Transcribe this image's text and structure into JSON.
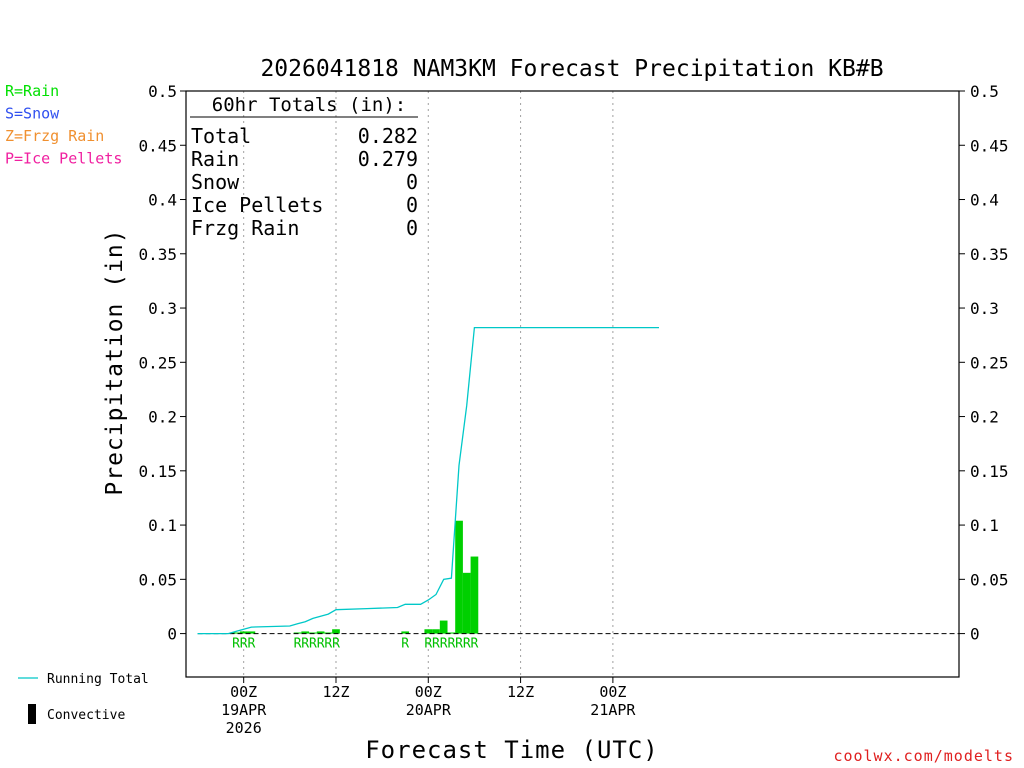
{
  "chart_data": {
    "type": "bar",
    "title": "2026041818 NAM3KM Forecast Precipitation KB#B",
    "ylabel": "Precipitation (in)",
    "xlabel": "Forecast Time (UTC)",
    "x_unit": "hours after 2026041818",
    "ylim": [
      -0.04,
      0.5
    ],
    "yticks": [
      0,
      0.05,
      0.1,
      0.15,
      0.2,
      0.25,
      0.3,
      0.35,
      0.4,
      0.45,
      0.5
    ],
    "ytick_labels": [
      "0",
      "0.05",
      "0.1",
      "0.15",
      "0.2",
      "0.25",
      "0.3",
      "0.35",
      "0.4",
      "0.45",
      "0.5"
    ],
    "xlim": [
      -1.5,
      99
    ],
    "xticks": [
      {
        "x": 6,
        "lines": [
          "00Z",
          "19APR",
          "2026"
        ]
      },
      {
        "x": 18,
        "lines": [
          "12Z"
        ]
      },
      {
        "x": 30,
        "lines": [
          "00Z",
          "20APR"
        ]
      },
      {
        "x": 42,
        "lines": [
          "12Z"
        ]
      },
      {
        "x": 54,
        "lines": [
          "00Z",
          "21APR"
        ]
      }
    ],
    "grid": "vertical-dotted",
    "bars_series": {
      "name": "Rain",
      "color": "#00d000",
      "points": [
        {
          "x": 5,
          "y": 0.001
        },
        {
          "x": 6,
          "y": 0.002
        },
        {
          "x": 7,
          "y": 0.002
        },
        {
          "x": 13,
          "y": 0.001
        },
        {
          "x": 14,
          "y": 0.002
        },
        {
          "x": 15,
          "y": 0.001
        },
        {
          "x": 16,
          "y": 0.002
        },
        {
          "x": 17,
          "y": 0.001
        },
        {
          "x": 18,
          "y": 0.004
        },
        {
          "x": 27,
          "y": 0.002
        },
        {
          "x": 30,
          "y": 0.004
        },
        {
          "x": 31,
          "y": 0.004
        },
        {
          "x": 32,
          "y": 0.012
        },
        {
          "x": 33,
          "y": 0.001
        },
        {
          "x": 34,
          "y": 0.104
        },
        {
          "x": 35,
          "y": 0.056
        },
        {
          "x": 36,
          "y": 0.071
        }
      ]
    },
    "line_series": {
      "name": "Running Total",
      "color": "#00c8c8",
      "points": [
        {
          "x": 0,
          "y": 0
        },
        {
          "x": 4,
          "y": 0
        },
        {
          "x": 5,
          "y": 0.002
        },
        {
          "x": 6,
          "y": 0.004
        },
        {
          "x": 7,
          "y": 0.006
        },
        {
          "x": 12,
          "y": 0.007
        },
        {
          "x": 13,
          "y": 0.009
        },
        {
          "x": 14,
          "y": 0.011
        },
        {
          "x": 15,
          "y": 0.014
        },
        {
          "x": 16,
          "y": 0.016
        },
        {
          "x": 17,
          "y": 0.018
        },
        {
          "x": 18,
          "y": 0.022
        },
        {
          "x": 22,
          "y": 0.023
        },
        {
          "x": 26,
          "y": 0.024
        },
        {
          "x": 27,
          "y": 0.027
        },
        {
          "x": 29,
          "y": 0.027
        },
        {
          "x": 30,
          "y": 0.031
        },
        {
          "x": 31,
          "y": 0.036
        },
        {
          "x": 32,
          "y": 0.05
        },
        {
          "x": 33,
          "y": 0.051
        },
        {
          "x": 34,
          "y": 0.155
        },
        {
          "x": 35,
          "y": 0.21
        },
        {
          "x": 36,
          "y": 0.282
        },
        {
          "x": 60,
          "y": 0.282
        }
      ]
    },
    "type_markers": [
      {
        "x": 5,
        "label": "R"
      },
      {
        "x": 6,
        "label": "R"
      },
      {
        "x": 7,
        "label": "R"
      },
      {
        "x": 13,
        "label": "R"
      },
      {
        "x": 14,
        "label": "R"
      },
      {
        "x": 15,
        "label": "R"
      },
      {
        "x": 16,
        "label": "R"
      },
      {
        "x": 17,
        "label": "R"
      },
      {
        "x": 18,
        "label": "R"
      },
      {
        "x": 27,
        "label": "R"
      },
      {
        "x": 30,
        "label": "R"
      },
      {
        "x": 31,
        "label": "R"
      },
      {
        "x": 32,
        "label": "R"
      },
      {
        "x": 33,
        "label": "R"
      },
      {
        "x": 34,
        "label": "R"
      },
      {
        "x": 35,
        "label": "R"
      },
      {
        "x": 36,
        "label": "R"
      }
    ],
    "totals": {
      "header": "60hr Totals (in):",
      "rows": [
        {
          "label": "Total",
          "value": "0.282"
        },
        {
          "label": "Rain",
          "value": "0.279"
        },
        {
          "label": "Snow",
          "value": "0"
        },
        {
          "label": "Ice Pellets",
          "value": "0"
        },
        {
          "label": "Frzg Rain",
          "value": "0"
        }
      ]
    },
    "type_legend": [
      {
        "text": "R=Rain",
        "color": "#00e000"
      },
      {
        "text": "S=Snow",
        "color": "#3050f0"
      },
      {
        "text": "Z=Frzg Rain",
        "color": "#f09030"
      },
      {
        "text": "P=Ice Pellets",
        "color": "#f020a0"
      }
    ],
    "series_legend": [
      {
        "text": "Running Total",
        "symbol": "line",
        "color": "#00c8c8"
      },
      {
        "text": "Convective",
        "symbol": "bar",
        "color": "#000000"
      }
    ],
    "credit": "coolwx.com/modelts"
  }
}
